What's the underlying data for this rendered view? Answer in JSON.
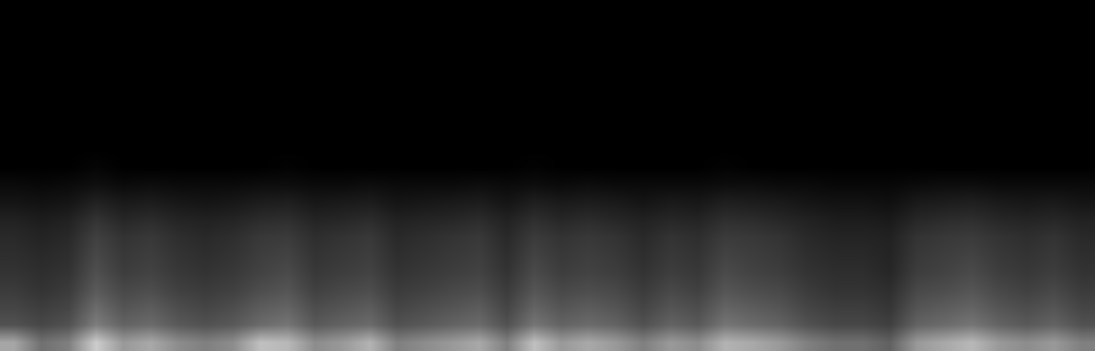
{
  "chart_data": {
    "type": "heatmap",
    "tick_labels": false,
    "zlim": [
      0,
      100
    ],
    "colors": [
      "#000000",
      "#ffffff"
    ],
    "z": [
      [
        65,
        44,
        50,
        80,
        60,
        66,
        55,
        50,
        55,
        75,
        72,
        55,
        60,
        70,
        50,
        55,
        60,
        66,
        50,
        75,
        60,
        66,
        60,
        50,
        60,
        55,
        70,
        66,
        60,
        50,
        44,
        44,
        38,
        60,
        66,
        72,
        60,
        55,
        60,
        50
      ],
      [
        32,
        28,
        32,
        49,
        39,
        42,
        35,
        32,
        35,
        42,
        46,
        35,
        39,
        42,
        32,
        35,
        39,
        42,
        32,
        46,
        39,
        42,
        39,
        32,
        39,
        35,
        46,
        42,
        39,
        32,
        28,
        28,
        25,
        39,
        42,
        46,
        39,
        35,
        39,
        32
      ],
      [
        27,
        24,
        27,
        42,
        33,
        36,
        30,
        27,
        30,
        36,
        39,
        30,
        33,
        36,
        27,
        30,
        33,
        36,
        27,
        39,
        33,
        36,
        33,
        27,
        33,
        30,
        39,
        36,
        33,
        27,
        24,
        24,
        21,
        33,
        36,
        39,
        33,
        30,
        33,
        27
      ],
      [
        23,
        20,
        23,
        35,
        28,
        30,
        25,
        23,
        25,
        30,
        33,
        25,
        28,
        30,
        23,
        25,
        28,
        30,
        23,
        33,
        28,
        30,
        28,
        23,
        28,
        25,
        33,
        30,
        28,
        23,
        20,
        20,
        18,
        28,
        30,
        33,
        28,
        25,
        28,
        23
      ],
      [
        20,
        18,
        20,
        31,
        24,
        26,
        22,
        20,
        22,
        26,
        29,
        22,
        24,
        26,
        20,
        22,
        24,
        26,
        20,
        29,
        24,
        26,
        24,
        20,
        24,
        22,
        29,
        26,
        24,
        20,
        18,
        18,
        15,
        24,
        26,
        29,
        24,
        22,
        24,
        20
      ],
      [
        18,
        16,
        18,
        28,
        22,
        24,
        20,
        18,
        20,
        24,
        26,
        20,
        22,
        24,
        18,
        20,
        22,
        24,
        18,
        26,
        22,
        24,
        22,
        18,
        22,
        20,
        26,
        24,
        22,
        18,
        16,
        16,
        14,
        22,
        24,
        26,
        22,
        20,
        22,
        18
      ],
      [
        16,
        14,
        16,
        25,
        20,
        22,
        18,
        16,
        18,
        22,
        23,
        18,
        20,
        22,
        16,
        18,
        20,
        22,
        16,
        23,
        20,
        22,
        20,
        16,
        20,
        18,
        23,
        22,
        20,
        16,
        14,
        14,
        13,
        20,
        22,
        23,
        20,
        18,
        20,
        16
      ],
      [
        13,
        11,
        13,
        20,
        15,
        17,
        14,
        13,
        14,
        17,
        18,
        14,
        15,
        17,
        13,
        14,
        15,
        17,
        13,
        18,
        15,
        17,
        15,
        13,
        15,
        14,
        18,
        17,
        15,
        13,
        11,
        11,
        10,
        15,
        17,
        18,
        15,
        14,
        15,
        13
      ],
      [
        8,
        7,
        8,
        13,
        10,
        11,
        9,
        8,
        9,
        11,
        12,
        9,
        10,
        11,
        8,
        9,
        10,
        11,
        8,
        12,
        10,
        11,
        10,
        8,
        10,
        9,
        12,
        11,
        10,
        8,
        7,
        7,
        6,
        10,
        11,
        12,
        10,
        9,
        10,
        8
      ],
      [
        4,
        3,
        4,
        6,
        4,
        5,
        4,
        4,
        4,
        5,
        5,
        4,
        4,
        5,
        4,
        4,
        4,
        5,
        4,
        5,
        4,
        5,
        4,
        4,
        4,
        4,
        5,
        5,
        4,
        4,
        3,
        3,
        3,
        4,
        5,
        5,
        4,
        4,
        4,
        4
      ],
      [
        0,
        0,
        0,
        2,
        0,
        0,
        0,
        0,
        0,
        0,
        1,
        0,
        0,
        0,
        0,
        0,
        0,
        0,
        0,
        1,
        0,
        0,
        0,
        0,
        0,
        0,
        1,
        0,
        0,
        0,
        0,
        0,
        0,
        0,
        0,
        0,
        0,
        0,
        0,
        0
      ],
      [
        0,
        0,
        0,
        0,
        0,
        0,
        0,
        0,
        0,
        0,
        0,
        0,
        0,
        0,
        0,
        0,
        0,
        0,
        0,
        0,
        0,
        0,
        0,
        0,
        0,
        0,
        0,
        0,
        0,
        0,
        0,
        0,
        0,
        0,
        0,
        0,
        0,
        0,
        0,
        0
      ],
      [
        0,
        0,
        0,
        0,
        0,
        0,
        0,
        0,
        0,
        0,
        0,
        0,
        0,
        0,
        0,
        0,
        0,
        0,
        0,
        0,
        0,
        0,
        0,
        0,
        0,
        0,
        0,
        0,
        0,
        0,
        0,
        0,
        0,
        0,
        0,
        0,
        0,
        0,
        0,
        0
      ],
      [
        0,
        0,
        0,
        0,
        0,
        0,
        0,
        0,
        0,
        0,
        0,
        0,
        0,
        0,
        0,
        0,
        0,
        0,
        0,
        0,
        0,
        0,
        0,
        0,
        0,
        0,
        0,
        0,
        0,
        0,
        0,
        0,
        0,
        0,
        0,
        0,
        0,
        0,
        0,
        0
      ],
      [
        0,
        0,
        0,
        0,
        0,
        0,
        0,
        0,
        0,
        0,
        0,
        0,
        0,
        0,
        0,
        0,
        0,
        0,
        0,
        0,
        0,
        0,
        0,
        0,
        0,
        0,
        0,
        0,
        0,
        0,
        0,
        0,
        0,
        0,
        0,
        0,
        0,
        0,
        0,
        0
      ],
      [
        0,
        0,
        0,
        0,
        0,
        0,
        0,
        0,
        0,
        0,
        0,
        0,
        0,
        0,
        0,
        0,
        0,
        0,
        0,
        0,
        0,
        0,
        0,
        0,
        0,
        0,
        0,
        0,
        0,
        0,
        0,
        0,
        0,
        0,
        0,
        0,
        0,
        0,
        0,
        0
      ],
      [
        0,
        0,
        0,
        0,
        0,
        0,
        0,
        0,
        0,
        0,
        0,
        0,
        0,
        0,
        0,
        0,
        0,
        0,
        0,
        0,
        0,
        0,
        0,
        0,
        0,
        0,
        0,
        0,
        0,
        0,
        0,
        0,
        0,
        0,
        0,
        0,
        0,
        0,
        0,
        0
      ],
      [
        0,
        0,
        0,
        0,
        0,
        0,
        0,
        0,
        0,
        0,
        0,
        0,
        0,
        0,
        0,
        0,
        0,
        0,
        0,
        0,
        0,
        0,
        0,
        0,
        0,
        0,
        0,
        0,
        0,
        0,
        0,
        0,
        0,
        0,
        0,
        0,
        0,
        0,
        0,
        0
      ],
      [
        0,
        0,
        0,
        0,
        0,
        0,
        0,
        0,
        0,
        0,
        0,
        0,
        0,
        0,
        0,
        0,
        0,
        0,
        0,
        0,
        0,
        0,
        0,
        0,
        0,
        0,
        0,
        0,
        0,
        0,
        0,
        0,
        0,
        0,
        0,
        0,
        0,
        0,
        0,
        0
      ],
      [
        0,
        0,
        0,
        0,
        0,
        0,
        0,
        0,
        0,
        0,
        0,
        0,
        0,
        0,
        0,
        0,
        0,
        0,
        0,
        0,
        0,
        0,
        0,
        0,
        0,
        0,
        0,
        0,
        0,
        0,
        0,
        0,
        0,
        0,
        0,
        0,
        0,
        0,
        0,
        0
      ]
    ]
  }
}
